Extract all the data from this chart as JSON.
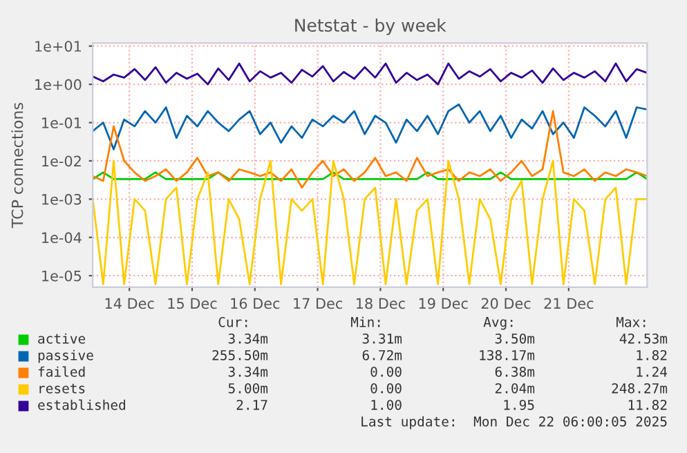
{
  "chart_data": {
    "type": "line",
    "title": "Netstat - by week",
    "ylabel": "TCP connections",
    "log": "y",
    "grid": true,
    "legend": "bottom left",
    "x": [
      "2025-12-13T10:00",
      "2025-12-13T14:00",
      "2025-12-13T18:00",
      "2025-12-13T22:00",
      "2025-12-14T02:00",
      "2025-12-14T06:00",
      "2025-12-14T10:00",
      "2025-12-14T14:00",
      "2025-12-14T18:00",
      "2025-12-14T22:00",
      "2025-12-15T02:00",
      "2025-12-15T06:00",
      "2025-12-15T10:00",
      "2025-12-15T14:00",
      "2025-12-15T18:00",
      "2025-12-15T22:00",
      "2025-12-16T02:00",
      "2025-12-16T06:00",
      "2025-12-16T10:00",
      "2025-12-16T14:00",
      "2025-12-16T18:00",
      "2025-12-16T22:00",
      "2025-12-17T02:00",
      "2025-12-17T06:00",
      "2025-12-17T10:00",
      "2025-12-17T14:00",
      "2025-12-17T18:00",
      "2025-12-17T22:00",
      "2025-12-18T02:00",
      "2025-12-18T06:00",
      "2025-12-18T10:00",
      "2025-12-18T14:00",
      "2025-12-18T18:00",
      "2025-12-18T22:00",
      "2025-12-19T02:00",
      "2025-12-19T06:00",
      "2025-12-19T10:00",
      "2025-12-19T14:00",
      "2025-12-19T18:00",
      "2025-12-19T22:00",
      "2025-12-20T02:00",
      "2025-12-20T06:00",
      "2025-12-20T10:00",
      "2025-12-20T14:00",
      "2025-12-20T18:00",
      "2025-12-20T22:00",
      "2025-12-21T02:00",
      "2025-12-21T06:00",
      "2025-12-21T10:00",
      "2025-12-21T14:00",
      "2025-12-21T18:00",
      "2025-12-21T22:00",
      "2025-12-22T02:00",
      "2025-12-22T06:00"
    ],
    "xlim": [
      "2025-12-13T10:00",
      "2025-12-22T06:00"
    ],
    "xticks": [
      {
        "value": "2025-12-14",
        "label": "14 Dec"
      },
      {
        "value": "2025-12-15",
        "label": "15 Dec"
      },
      {
        "value": "2025-12-16",
        "label": "16 Dec"
      },
      {
        "value": "2025-12-17",
        "label": "17 Dec"
      },
      {
        "value": "2025-12-18",
        "label": "18 Dec"
      },
      {
        "value": "2025-12-19",
        "label": "19 Dec"
      },
      {
        "value": "2025-12-20",
        "label": "20 Dec"
      },
      {
        "value": "2025-12-21",
        "label": "21 Dec"
      }
    ],
    "ylim": [
      5e-06,
      12
    ],
    "yticks": [
      {
        "value": 1e-05,
        "label": "1e-05"
      },
      {
        "value": 0.0001,
        "label": "1e-04"
      },
      {
        "value": 0.001,
        "label": "1e-03"
      },
      {
        "value": 0.01,
        "label": "1e-02"
      },
      {
        "value": 0.1,
        "label": "1e-01"
      },
      {
        "value": 1,
        "label": "1e+00"
      },
      {
        "value": 10,
        "label": "1e+01"
      }
    ],
    "series": [
      {
        "name": "active",
        "color": "#00cc00",
        "values": [
          0.00334,
          0.005,
          0.00334,
          0.00334,
          0.00334,
          0.00334,
          0.005,
          0.00334,
          0.00334,
          0.00334,
          0.00334,
          0.00334,
          0.005,
          0.00334,
          0.00334,
          0.00334,
          0.00334,
          0.00334,
          0.00334,
          0.00334,
          0.00334,
          0.00334,
          0.00334,
          0.005,
          0.00334,
          0.00334,
          0.00334,
          0.00334,
          0.00334,
          0.00334,
          0.00334,
          0.00334,
          0.005,
          0.00334,
          0.00334,
          0.00334,
          0.00334,
          0.00334,
          0.00334,
          0.005,
          0.00334,
          0.00334,
          0.00334,
          0.00334,
          0.00334,
          0.00334,
          0.00334,
          0.00334,
          0.00334,
          0.00334,
          0.00334,
          0.00334,
          0.005,
          0.00334
        ]
      },
      {
        "name": "passive",
        "color": "#0066b3",
        "values": [
          0.06,
          0.1,
          0.02,
          0.12,
          0.08,
          0.2,
          0.1,
          0.25,
          0.04,
          0.15,
          0.08,
          0.2,
          0.1,
          0.06,
          0.12,
          0.2,
          0.05,
          0.1,
          0.03,
          0.08,
          0.04,
          0.12,
          0.08,
          0.15,
          0.1,
          0.2,
          0.05,
          0.15,
          0.1,
          0.03,
          0.12,
          0.06,
          0.15,
          0.05,
          0.2,
          0.3,
          0.1,
          0.2,
          0.06,
          0.15,
          0.04,
          0.12,
          0.07,
          0.2,
          0.05,
          0.1,
          0.04,
          0.25,
          0.15,
          0.08,
          0.2,
          0.04,
          0.25,
          0.22
        ]
      },
      {
        "name": "failed",
        "color": "#ff8000",
        "values": [
          0.004,
          0.003,
          0.08,
          0.01,
          0.005,
          0.003,
          0.004,
          0.006,
          0.003,
          0.005,
          0.012,
          0.004,
          0.005,
          0.003,
          0.006,
          0.005,
          0.004,
          0.005,
          0.003,
          0.006,
          0.002,
          0.005,
          0.01,
          0.004,
          0.006,
          0.003,
          0.005,
          0.012,
          0.004,
          0.005,
          0.003,
          0.012,
          0.004,
          0.005,
          0.006,
          0.003,
          0.005,
          0.004,
          0.006,
          0.003,
          0.005,
          0.01,
          0.004,
          0.006,
          0.2,
          0.005,
          0.004,
          0.006,
          0.003,
          0.005,
          0.004,
          0.006,
          0.005,
          0.004
        ]
      },
      {
        "name": "resets",
        "color": "#ffcc00",
        "values": [
          0.001,
          6e-06,
          0.01,
          6e-06,
          0.001,
          0.0005,
          6e-06,
          0.001,
          0.002,
          6e-06,
          0.001,
          0.005,
          6e-06,
          0.001,
          0.0003,
          6e-06,
          0.001,
          0.01,
          6e-06,
          0.001,
          0.0005,
          0.001,
          6e-06,
          0.01,
          0.001,
          6e-06,
          0.001,
          0.002,
          6e-06,
          0.001,
          6e-06,
          0.0005,
          0.001,
          6e-06,
          0.01,
          0.001,
          6e-06,
          0.001,
          0.0003,
          6e-06,
          0.001,
          0.003,
          6e-06,
          0.001,
          0.01,
          6e-06,
          0.001,
          0.0005,
          6e-06,
          0.001,
          0.002,
          6e-06,
          0.001,
          0.001
        ]
      },
      {
        "name": "established",
        "color": "#330099",
        "values": [
          1.6,
          1.2,
          1.8,
          1.5,
          2.5,
          1.3,
          2.8,
          1.1,
          2.0,
          1.4,
          1.9,
          1.0,
          2.6,
          1.3,
          3.5,
          1.2,
          2.2,
          1.5,
          2.0,
          1.1,
          2.4,
          1.6,
          3.0,
          1.2,
          2.1,
          1.4,
          2.8,
          1.5,
          3.5,
          1.1,
          2.0,
          1.3,
          1.8,
          1.0,
          3.5,
          1.4,
          2.2,
          1.6,
          2.5,
          1.2,
          2.0,
          1.5,
          2.3,
          1.1,
          2.6,
          1.3,
          2.0,
          1.5,
          2.2,
          1.2,
          3.5,
          1.2,
          2.5,
          2.0
        ]
      }
    ],
    "annotations": [
      "Cur:",
      "Min:",
      "Avg:",
      "Max:",
      "3.34m",
      "3.31m",
      "3.50m",
      "42.53m",
      "255.50m",
      "6.72m",
      "138.17m",
      "1.82",
      "3.34m",
      "0.00",
      "6.38m",
      "1.24",
      "5.00m",
      "0.00",
      "2.04m",
      "248.27m",
      "2.17",
      "1.00",
      "1.95",
      "11.82",
      "Last update:  Mon Dec 22 06:00:05 2025"
    ]
  }
}
